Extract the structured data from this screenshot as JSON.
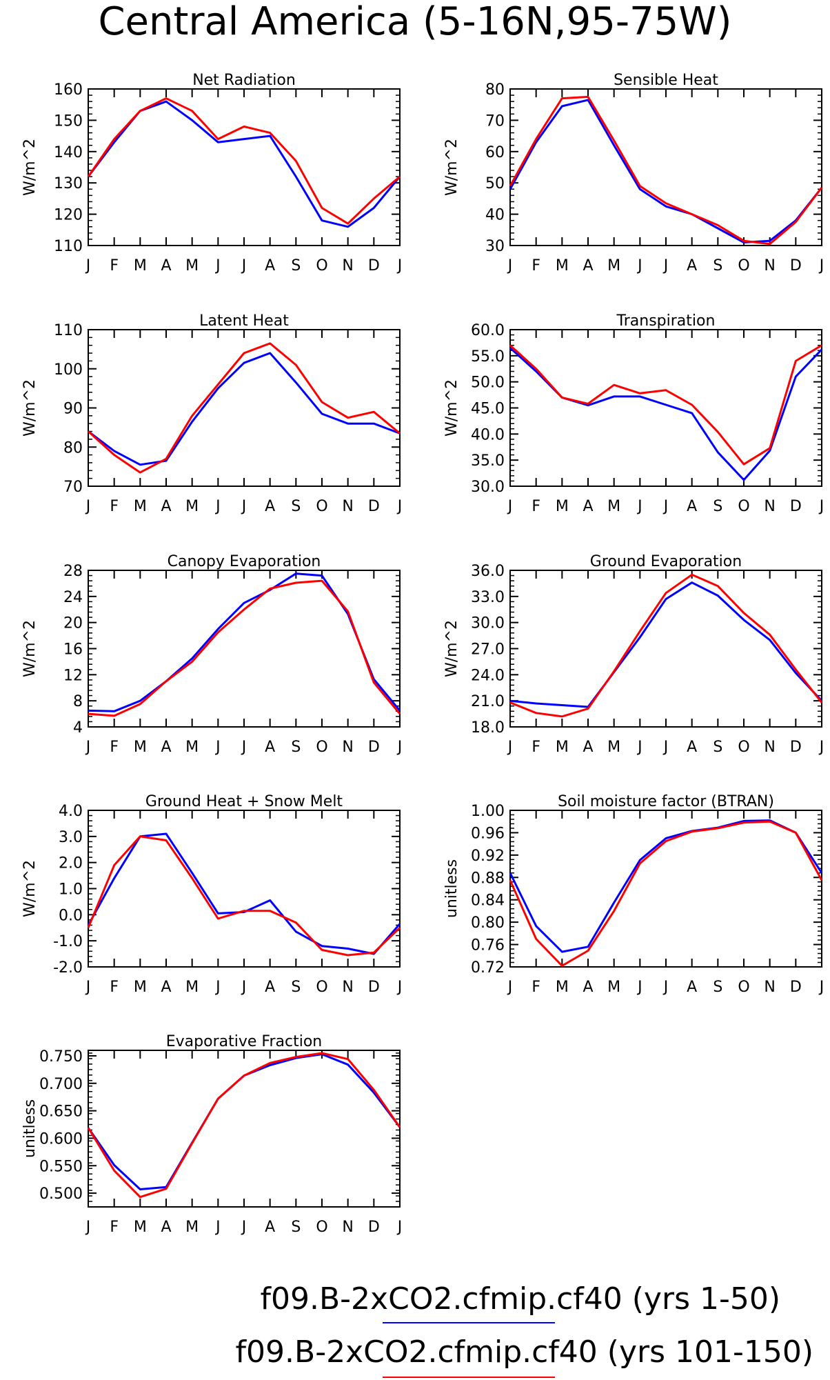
{
  "main_title": "Central America (5-16N,95-75W)",
  "colors": {
    "series1": "#0000ff",
    "series2": "#ff0000",
    "axis": "#000000"
  },
  "months": [
    "J",
    "F",
    "M",
    "A",
    "M",
    "J",
    "J",
    "A",
    "S",
    "O",
    "N",
    "D",
    "J"
  ],
  "legend": [
    {
      "label": "f09.B-2xCO2.cfmip.cf40 (yrs 1-50)",
      "color": "#0000ff"
    },
    {
      "label": "f09.B-2xCO2.cfmip.cf40 (yrs 101-150)",
      "color": "#ff0000"
    }
  ],
  "chart_data": [
    {
      "type": "line",
      "title": "Net Radiation",
      "ylabel": "W/m^2",
      "ylim": [
        110,
        160
      ],
      "yticks": [
        "110",
        "120",
        "130",
        "140",
        "150",
        "160"
      ],
      "series": [
        {
          "values": [
            132,
            143,
            153,
            156,
            150,
            143,
            144,
            145,
            132,
            118,
            116,
            122,
            132
          ]
        },
        {
          "values": [
            132,
            144,
            153,
            157,
            153,
            144,
            148,
            146,
            137,
            122,
            117,
            125,
            132
          ]
        }
      ]
    },
    {
      "type": "line",
      "title": "Sensible Heat",
      "ylabel": "W/m^2",
      "ylim": [
        30,
        80
      ],
      "yticks": [
        "30",
        "40",
        "50",
        "60",
        "70",
        "80"
      ],
      "series": [
        {
          "values": [
            48,
            63,
            74.5,
            76.5,
            62,
            48,
            42.5,
            40,
            35.5,
            31,
            31.5,
            38,
            48.5
          ]
        },
        {
          "values": [
            49,
            64,
            77,
            77.5,
            63.5,
            49,
            43.5,
            40,
            36.5,
            31.5,
            30.5,
            37.5,
            48.5
          ]
        }
      ]
    },
    {
      "type": "line",
      "title": "Latent Heat",
      "ylabel": "W/m^2",
      "ylim": [
        70,
        110
      ],
      "yticks": [
        "70",
        "80",
        "90",
        "100",
        "110"
      ],
      "series": [
        {
          "values": [
            84,
            79,
            75.5,
            76.5,
            86.5,
            95,
            101.5,
            104,
            96.5,
            88.5,
            86,
            86,
            83.5
          ]
        },
        {
          "values": [
            84,
            78,
            73.5,
            77,
            88,
            96,
            104,
            106.5,
            101,
            91.5,
            87.5,
            89,
            83.5
          ]
        }
      ]
    },
    {
      "type": "line",
      "title": "Transpiration",
      "ylabel": "W/m^2",
      "ylim": [
        30,
        60
      ],
      "yticks": [
        "30.0",
        "35.0",
        "40.0",
        "45.0",
        "50.0",
        "55.0",
        "60.0"
      ],
      "series": [
        {
          "values": [
            56.5,
            52,
            47,
            45.5,
            47.2,
            47.2,
            45.6,
            44,
            36.5,
            31.2,
            36.8,
            51,
            56.2
          ]
        },
        {
          "values": [
            57,
            52.5,
            47,
            45.8,
            49.4,
            47.8,
            48.4,
            45.6,
            40.4,
            34.2,
            37.3,
            54,
            57
          ]
        }
      ]
    },
    {
      "type": "line",
      "title": "Canopy Evaporation",
      "ylabel": "W/m^2",
      "ylim": [
        4,
        28
      ],
      "yticks": [
        "4",
        "8",
        "12",
        "16",
        "20",
        "24",
        "28"
      ],
      "series": [
        {
          "values": [
            6.5,
            6.4,
            8,
            11,
            14.5,
            19,
            23,
            25,
            27.5,
            27.2,
            21.3,
            11.3,
            6.5
          ]
        },
        {
          "values": [
            6,
            5.7,
            7.5,
            11,
            14,
            18.5,
            22,
            25.2,
            26.1,
            26.4,
            21.7,
            10.8,
            6
          ]
        }
      ]
    },
    {
      "type": "line",
      "title": "Ground Evaporation",
      "ylabel": "W/m^2",
      "ylim": [
        18,
        36
      ],
      "yticks": [
        "18.0",
        "21.0",
        "24.0",
        "27.0",
        "30.0",
        "33.0",
        "36.0"
      ],
      "series": [
        {
          "values": [
            21,
            20.7,
            20.5,
            20.3,
            24.3,
            28.3,
            32.7,
            34.6,
            33.1,
            30.3,
            28,
            24.2,
            21
          ]
        },
        {
          "values": [
            20.8,
            19.6,
            19.2,
            20.1,
            24.4,
            29,
            33.4,
            35.5,
            34.2,
            31.1,
            28.6,
            24.6,
            20.8
          ]
        }
      ]
    },
    {
      "type": "line",
      "title": "Ground Heat + Snow Melt",
      "ylabel": "W/m^2",
      "ylim": [
        -2,
        4
      ],
      "yticks": [
        "-2.0",
        "-1.0",
        "0.0",
        "1.0",
        "2.0",
        "3.0",
        "4.0"
      ],
      "series": [
        {
          "values": [
            -0.4,
            1.4,
            3.0,
            3.1,
            1.6,
            0.05,
            0.1,
            0.55,
            -0.65,
            -1.2,
            -1.3,
            -1.5,
            -0.35
          ]
        },
        {
          "values": [
            -0.5,
            1.9,
            3.0,
            2.85,
            1.4,
            -0.15,
            0.15,
            0.15,
            -0.3,
            -1.35,
            -1.55,
            -1.45,
            -0.5
          ]
        }
      ]
    },
    {
      "type": "line",
      "title": "Soil moisture factor (BTRAN)",
      "ylabel": "unitless",
      "ylim": [
        0.72,
        1.0
      ],
      "yticks": [
        "0.72",
        "0.76",
        "0.80",
        "0.84",
        "0.88",
        "0.92",
        "0.96",
        "1.00"
      ],
      "series": [
        {
          "values": [
            0.888,
            0.793,
            0.747,
            0.756,
            0.835,
            0.911,
            0.95,
            0.963,
            0.969,
            0.981,
            0.982,
            0.96,
            0.888
          ]
        },
        {
          "values": [
            0.875,
            0.77,
            0.722,
            0.749,
            0.82,
            0.905,
            0.945,
            0.962,
            0.968,
            0.978,
            0.98,
            0.96,
            0.875
          ]
        }
      ]
    },
    {
      "type": "line",
      "title": "Evaporative Fraction",
      "ylabel": "unitless",
      "ylim": [
        0.475,
        0.76
      ],
      "yticks": [
        "0.500",
        "0.550",
        "0.600",
        "0.650",
        "0.700",
        "0.750"
      ],
      "series": [
        {
          "values": [
            0.619,
            0.551,
            0.507,
            0.511,
            0.592,
            0.672,
            0.714,
            0.733,
            0.746,
            0.753,
            0.734,
            0.683,
            0.62
          ]
        },
        {
          "values": [
            0.619,
            0.541,
            0.493,
            0.508,
            0.591,
            0.672,
            0.714,
            0.737,
            0.748,
            0.755,
            0.744,
            0.688,
            0.62
          ]
        }
      ]
    }
  ]
}
